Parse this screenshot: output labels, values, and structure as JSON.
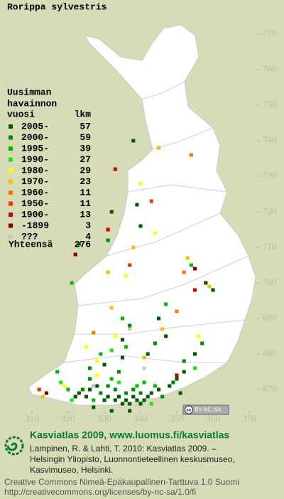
{
  "map": {
    "title": "Rorippa sylvestris",
    "legend_header": [
      "Uusimman",
      "havainnon",
      "vuosi"
    ],
    "count_header": "lkm",
    "classes": [
      {
        "name": "2005-",
        "count": 57,
        "color": "#005a00"
      },
      {
        "name": "2000-",
        "count": 59,
        "color": "#008c00"
      },
      {
        "name": "1995-",
        "count": 39,
        "color": "#00bb00"
      },
      {
        "name": "1990-",
        "count": 27,
        "color": "#22e022"
      },
      {
        "name": "1980-",
        "count": 29,
        "color": "#ffff00"
      },
      {
        "name": "1970-",
        "count": 23,
        "color": "#f5c000"
      },
      {
        "name": "1960-",
        "count": 11,
        "color": "#f57a00"
      },
      {
        "name": "1950-",
        "count": 11,
        "color": "#e03a00"
      },
      {
        "name": "1900-",
        "count": 13,
        "color": "#cc0000"
      },
      {
        "name": "-1899",
        "count": 3,
        "color": "#800000"
      },
      {
        "name": "???",
        "count": 4,
        "color": "#c8c8c8"
      }
    ],
    "total_label": "Yhteensä",
    "total": 276,
    "xlim": [
      310,
      370
    ],
    "ylim": [
      665,
      775
    ],
    "xticks": [
      310,
      320,
      330,
      340,
      350,
      360,
      370
    ],
    "yticks": [
      770,
      760,
      750,
      740,
      730,
      720,
      710,
      700,
      690,
      680,
      670
    ],
    "squares": [
      [
        322,
        668,
        0
      ],
      [
        323,
        669,
        0
      ],
      [
        325,
        668,
        0
      ],
      [
        326,
        670,
        0
      ],
      [
        328,
        671,
        0
      ],
      [
        330,
        667,
        0
      ],
      [
        331,
        668,
        0
      ],
      [
        333,
        667,
        0
      ],
      [
        334,
        668,
        0
      ],
      [
        335,
        666,
        0
      ],
      [
        336,
        667,
        0
      ],
      [
        337,
        666,
        0
      ],
      [
        338,
        668,
        0
      ],
      [
        339,
        667,
        0
      ],
      [
        340,
        666,
        0
      ],
      [
        341,
        667,
        0
      ],
      [
        342,
        668,
        0
      ],
      [
        343,
        669,
        0
      ],
      [
        345,
        670,
        0
      ],
      [
        348,
        671,
        0
      ],
      [
        350,
        673,
        0
      ],
      [
        352,
        675,
        0
      ],
      [
        330,
        677,
        0
      ],
      [
        335,
        679,
        0
      ],
      [
        342,
        680,
        0
      ],
      [
        355,
        680,
        0
      ],
      [
        345,
        690,
        0
      ],
      [
        358,
        700,
        0
      ],
      [
        360,
        698,
        0
      ],
      [
        332,
        720,
        0
      ],
      [
        339,
        722,
        0
      ],
      [
        340,
        716,
        0
      ],
      [
        323,
        711,
        0
      ],
      [
        338,
        740,
        0
      ],
      [
        335,
        684,
        0
      ],
      [
        347,
        685,
        0
      ],
      [
        351,
        669,
        0
      ],
      [
        327,
        665,
        0
      ],
      [
        332,
        664,
        0
      ],
      [
        337,
        664,
        0
      ],
      [
        324,
        670,
        1
      ],
      [
        329,
        669,
        1
      ],
      [
        331,
        671,
        1
      ],
      [
        333,
        670,
        1
      ],
      [
        336,
        669,
        1
      ],
      [
        338,
        670,
        1
      ],
      [
        340,
        669,
        1
      ],
      [
        346,
        668,
        1
      ],
      [
        349,
        672,
        1
      ],
      [
        326,
        673,
        1
      ],
      [
        334,
        675,
        1
      ],
      [
        344,
        683,
        1
      ],
      [
        326,
        676,
        1
      ],
      [
        337,
        688,
        1
      ],
      [
        331,
        712,
        1
      ],
      [
        352,
        678,
        1
      ],
      [
        357,
        683,
        1
      ],
      [
        320,
        670,
        2
      ],
      [
        327,
        667,
        2
      ],
      [
        332,
        673,
        2
      ],
      [
        339,
        671,
        2
      ],
      [
        341,
        672,
        2
      ],
      [
        344,
        671,
        2
      ],
      [
        329,
        680,
        2
      ],
      [
        336,
        682,
        2
      ],
      [
        347,
        694,
        2
      ],
      [
        354,
        705,
        2
      ],
      [
        321,
        700,
        2
      ],
      [
        317,
        675,
        2
      ],
      [
        335,
        690,
        2
      ],
      [
        318,
        672,
        3
      ],
      [
        334,
        672,
        3
      ],
      [
        343,
        666,
        3
      ],
      [
        321,
        667,
        3
      ],
      [
        332,
        681,
        3
      ],
      [
        355,
        676,
        3
      ],
      [
        319,
        671,
        4
      ],
      [
        328,
        674,
        4
      ],
      [
        333,
        685,
        4
      ],
      [
        344,
        714,
        4
      ],
      [
        336,
        702,
        4
      ],
      [
        356,
        685,
        4
      ],
      [
        325,
        682,
        4
      ],
      [
        328,
        678,
        4
      ],
      [
        340,
        728,
        4
      ],
      [
        313,
        668,
        5
      ],
      [
        338,
        710,
        5
      ],
      [
        353,
        707,
        5
      ],
      [
        346,
        687,
        5
      ],
      [
        332,
        693,
        5
      ],
      [
        341,
        679,
        5
      ],
      [
        359,
        699,
        5
      ],
      [
        345,
        738,
        5
      ],
      [
        331,
        703,
        5
      ],
      [
        327,
        686,
        6
      ],
      [
        354,
        736,
        6
      ],
      [
        352,
        703,
        6
      ],
      [
        350,
        692,
        6
      ],
      [
        312,
        670,
        7
      ],
      [
        343,
        723,
        7
      ],
      [
        337,
        705,
        7
      ],
      [
        333,
        732,
        8
      ],
      [
        350,
        674,
        8
      ],
      [
        331,
        715,
        8
      ],
      [
        355,
        698,
        8
      ],
      [
        314,
        669,
        9
      ],
      [
        355,
        704,
        9
      ],
      [
        322,
        708,
        9
      ],
      [
        337,
        687,
        10
      ],
      [
        341,
        676,
        10
      ],
      [
        327,
        671,
        10
      ]
    ],
    "license_badge": [
      "cc",
      "BY-NC-SA"
    ],
    "footer_title": "Kasviatlas 2009, www.luomus.fi/kasviatlas",
    "citation": [
      "Lampinen, R. & Lahti, T. 2010: Kasviatlas 2009. –",
      "Helsingin Yliopisto, Luonnontieteellinen keskusmuseo,",
      "Kasvimuseo, Helsinki."
    ],
    "license": [
      "Creative Commons Nimeä-Epäkaupallinen-Tarttuva 1.0 Suomi",
      "http://creativecommons.org/licenses/by-nc-sa/1.0/fi"
    ]
  }
}
